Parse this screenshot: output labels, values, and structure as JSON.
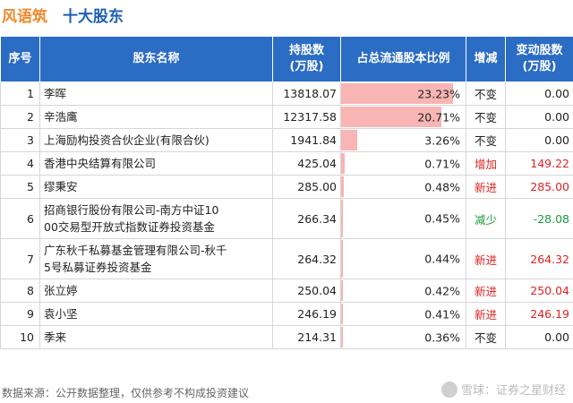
{
  "header": {
    "brand": "风语筑",
    "title": "十大股东"
  },
  "table": {
    "columns": [
      "序号",
      "股东名称",
      "持股数\n(万股)",
      "占总流通股本比例",
      "增减",
      "变动股数\n(万股)"
    ],
    "rows": [
      {
        "seq": "1",
        "name": "李晖",
        "shares": "13818.07",
        "ratio": "23.23%",
        "ratio_value": 23.23,
        "change": "不变",
        "change_color": "#222222",
        "delta": "0.00",
        "delta_color": "#222222"
      },
      {
        "seq": "2",
        "name": "辛浩鹰",
        "shares": "12317.58",
        "ratio": "20.71%",
        "ratio_value": 20.71,
        "change": "不变",
        "change_color": "#222222",
        "delta": "0.00",
        "delta_color": "#222222"
      },
      {
        "seq": "3",
        "name": "上海励构投资合伙企业(有限合伙)",
        "shares": "1941.84",
        "ratio": "3.26%",
        "ratio_value": 3.26,
        "change": "不变",
        "change_color": "#222222",
        "delta": "0.00",
        "delta_color": "#222222"
      },
      {
        "seq": "4",
        "name": "香港中央结算有限公司",
        "shares": "425.04",
        "ratio": "0.71%",
        "ratio_value": 0.71,
        "change": "增加",
        "change_color": "#e02020",
        "delta": "149.22",
        "delta_color": "#e02020"
      },
      {
        "seq": "5",
        "name": "缪秉安",
        "shares": "285.00",
        "ratio": "0.48%",
        "ratio_value": 0.48,
        "change": "新进",
        "change_color": "#e02020",
        "delta": "285.00",
        "delta_color": "#e02020"
      },
      {
        "seq": "6",
        "name": "招商银行股份有限公司-南方中证1000交易型开放式指数证券投资基金",
        "name_lines": [
          "招商银行股份有限公司-南方中证10",
          "00交易型开放式指数证券投资基金"
        ],
        "shares": "266.34",
        "ratio": "0.45%",
        "ratio_value": 0.45,
        "change": "减少",
        "change_color": "#1a9a3a",
        "delta": "-28.08",
        "delta_color": "#1a9a3a"
      },
      {
        "seq": "7",
        "name": "广东秋千私募基金管理有限公司-秋千5号私募证券投资基金",
        "name_lines": [
          "广东秋千私募基金管理有限公司-秋千",
          "5号私募证券投资基金"
        ],
        "shares": "264.32",
        "ratio": "0.44%",
        "ratio_value": 0.44,
        "change": "新进",
        "change_color": "#e02020",
        "delta": "264.32",
        "delta_color": "#e02020"
      },
      {
        "seq": "8",
        "name": "张立婷",
        "shares": "250.04",
        "ratio": "0.42%",
        "ratio_value": 0.42,
        "change": "新进",
        "change_color": "#e02020",
        "delta": "250.04",
        "delta_color": "#e02020"
      },
      {
        "seq": "9",
        "name": "袁小坚",
        "shares": "246.19",
        "ratio": "0.41%",
        "ratio_value": 0.41,
        "change": "新进",
        "change_color": "#e02020",
        "delta": "246.19",
        "delta_color": "#e02020"
      },
      {
        "seq": "10",
        "name": "季来",
        "shares": "214.31",
        "ratio": "0.36%",
        "ratio_value": 0.36,
        "change": "不变",
        "change_color": "#222222",
        "delta": "0.00",
        "delta_color": "#222222"
      }
    ]
  },
  "footer": {
    "source": "数据来源：公开数据整理，仅供参考不构成投资建议",
    "logo_text": "雪球：证券之星财经"
  },
  "colors": {
    "header_bg": "#2b6cc4",
    "bar": "#f9b4b4",
    "brand": "#f08a2e",
    "title": "#1e5fb4"
  }
}
